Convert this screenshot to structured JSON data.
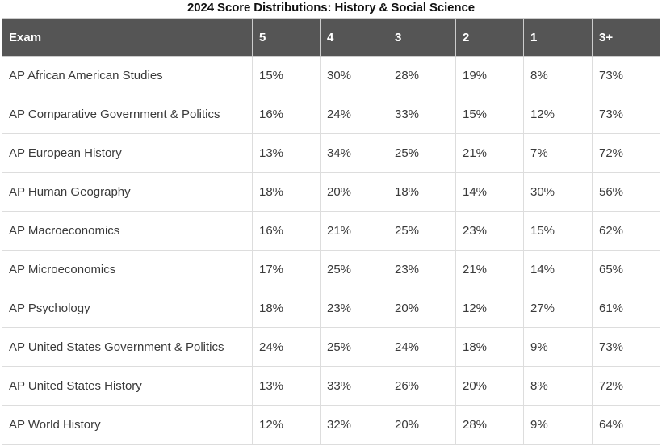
{
  "title": "2024 Score Distributions: History & Social Science",
  "columns": [
    "Exam",
    "5",
    "4",
    "3",
    "2",
    "1",
    "3+"
  ],
  "rows": [
    [
      "AP African American Studies",
      "15%",
      "30%",
      "28%",
      "19%",
      "8%",
      "73%"
    ],
    [
      "AP Comparative Government & Politics",
      "16%",
      "24%",
      "33%",
      "15%",
      "12%",
      "73%"
    ],
    [
      "AP European History",
      "13%",
      "34%",
      "25%",
      "21%",
      "7%",
      "72%"
    ],
    [
      "AP Human Geography",
      "18%",
      "20%",
      "18%",
      "14%",
      "30%",
      "56%"
    ],
    [
      "AP Macroeconomics",
      "16%",
      "21%",
      "25%",
      "23%",
      "15%",
      "62%"
    ],
    [
      "AP Microeconomics",
      "17%",
      "25%",
      "23%",
      "21%",
      "14%",
      "65%"
    ],
    [
      "AP Psychology",
      "18%",
      "23%",
      "20%",
      "12%",
      "27%",
      "61%"
    ],
    [
      "AP United States Government & Politics",
      "24%",
      "25%",
      "24%",
      "18%",
      "9%",
      "73%"
    ],
    [
      "AP United States History",
      "13%",
      "33%",
      "26%",
      "20%",
      "8%",
      "72%"
    ],
    [
      "AP World History",
      "12%",
      "32%",
      "20%",
      "28%",
      "9%",
      "64%"
    ]
  ],
  "colors": {
    "header_bg": "#555555",
    "header_text": "#ffffff",
    "border": "#dddddd"
  }
}
